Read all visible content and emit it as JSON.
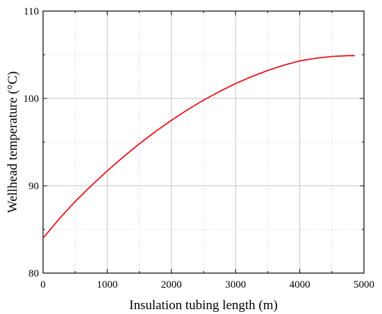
{
  "chart_data": {
    "type": "line",
    "title": "",
    "xlabel": "Insulation tubing length (m)",
    "ylabel": "Wellhead temperature (°C)",
    "xlim": [
      0,
      5000
    ],
    "ylim": [
      80,
      110
    ],
    "x_ticks": [
      "0",
      "1000",
      "2000",
      "3000",
      "4000",
      "5000"
    ],
    "y_ticks": [
      "80",
      "90",
      "100",
      "110"
    ],
    "grid": true,
    "minor_grid": true,
    "legend": "none",
    "series": [
      {
        "color": "#e8121c",
        "x": [
          0,
          250,
          500,
          750,
          1000,
          1250,
          1500,
          1750,
          2000,
          2250,
          2500,
          2750,
          3000,
          3250,
          3500,
          3750,
          4000,
          4250,
          4500,
          4750,
          4850
        ],
        "y": [
          84.0,
          86.2,
          88.2,
          90.0,
          91.7,
          93.3,
          94.8,
          96.2,
          97.5,
          98.7,
          99.8,
          100.8,
          101.7,
          102.5,
          103.2,
          103.8,
          104.3,
          104.6,
          104.8,
          104.9,
          104.9
        ]
      }
    ]
  }
}
